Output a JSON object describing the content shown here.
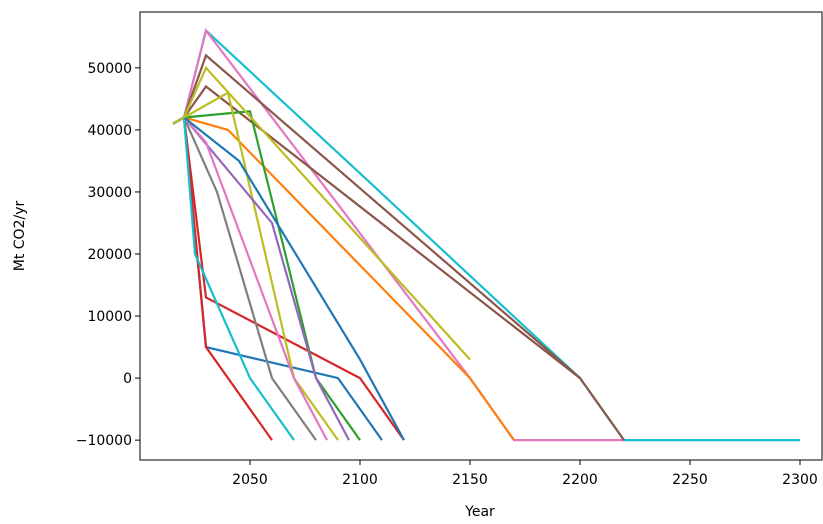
{
  "chart_data": {
    "type": "line",
    "x_label": "Year",
    "y_label": "Mt CO2/yr",
    "xlim": [
      2000,
      2310
    ],
    "ylim": [
      -13200,
      59000
    ],
    "xticks": [
      2050,
      2100,
      2150,
      2200,
      2250,
      2300
    ],
    "yticks": [
      {
        "value": -10000,
        "label": "−10000"
      },
      0,
      10000,
      20000,
      30000,
      40000,
      50000
    ],
    "series": [
      {
        "color": "#17becf",
        "x": [
          2015,
          2020,
          2030,
          2100,
          2200,
          2220,
          2300
        ],
        "values": [
          41000,
          42000,
          56000,
          33000,
          0,
          -10000,
          -10000
        ]
      },
      {
        "color": "#e377c2",
        "x": [
          2015,
          2020,
          2030,
          2150,
          2170,
          2220
        ],
        "values": [
          41000,
          42000,
          56000,
          0,
          -10000,
          -10000
        ]
      },
      {
        "color": "#8c564b",
        "x": [
          2015,
          2020,
          2030,
          2200,
          2220
        ],
        "values": [
          41000,
          42000,
          47000,
          0,
          -10000
        ]
      },
      {
        "color": "#ff7f0e",
        "x": [
          2015,
          2020,
          2040,
          2150,
          2170
        ],
        "values": [
          41000,
          42000,
          40000,
          0,
          -10000
        ]
      },
      {
        "color": "#d62728",
        "x": [
          2015,
          2020,
          2030,
          2100,
          2120
        ],
        "values": [
          41000,
          42000,
          13000,
          0,
          -10000
        ]
      },
      {
        "color": "#1f77b4",
        "x": [
          2015,
          2020,
          2030,
          2090,
          2110
        ],
        "values": [
          41000,
          42000,
          5000,
          0,
          -10000
        ]
      },
      {
        "color": "#2ca02c",
        "x": [
          2015,
          2020,
          2050,
          2080,
          2100
        ],
        "values": [
          41000,
          42000,
          43000,
          0,
          -10000
        ]
      },
      {
        "color": "#bcbd22",
        "x": [
          2015,
          2020,
          2040,
          2070,
          2090
        ],
        "values": [
          41000,
          42000,
          46000,
          0,
          -10000
        ]
      },
      {
        "color": "#9467bd",
        "x": [
          2015,
          2020,
          2060,
          2080,
          2095
        ],
        "values": [
          41000,
          42000,
          25000,
          0,
          -10000
        ]
      },
      {
        "color": "#7f7f7f",
        "x": [
          2015,
          2020,
          2035,
          2060,
          2080
        ],
        "values": [
          41000,
          42000,
          30000,
          0,
          -10000
        ]
      },
      {
        "color": "#d62728",
        "x": [
          2015,
          2020,
          2030,
          2040,
          2060
        ],
        "values": [
          41000,
          42000,
          5000,
          0,
          -10000
        ]
      },
      {
        "color": "#e377c2",
        "x": [
          2015,
          2020,
          2030,
          2070,
          2085
        ],
        "values": [
          41000,
          42000,
          38000,
          0,
          -10000
        ]
      },
      {
        "color": "#17becf",
        "x": [
          2015,
          2020,
          2025,
          2050,
          2070
        ],
        "values": [
          41000,
          42000,
          20000,
          0,
          -10000
        ]
      },
      {
        "color": "#8c564b",
        "x": [
          2015,
          2020,
          2030,
          2200
        ],
        "values": [
          41000,
          42000,
          52000,
          0
        ]
      },
      {
        "color": "#1f77b4",
        "x": [
          2015,
          2020,
          2045,
          2100,
          2120
        ],
        "values": [
          41000,
          42000,
          35000,
          3000,
          -10000
        ]
      },
      {
        "color": "#bcbd22",
        "x": [
          2015,
          2020,
          2030,
          2150
        ],
        "values": [
          41000,
          42000,
          50000,
          3000
        ]
      }
    ]
  }
}
